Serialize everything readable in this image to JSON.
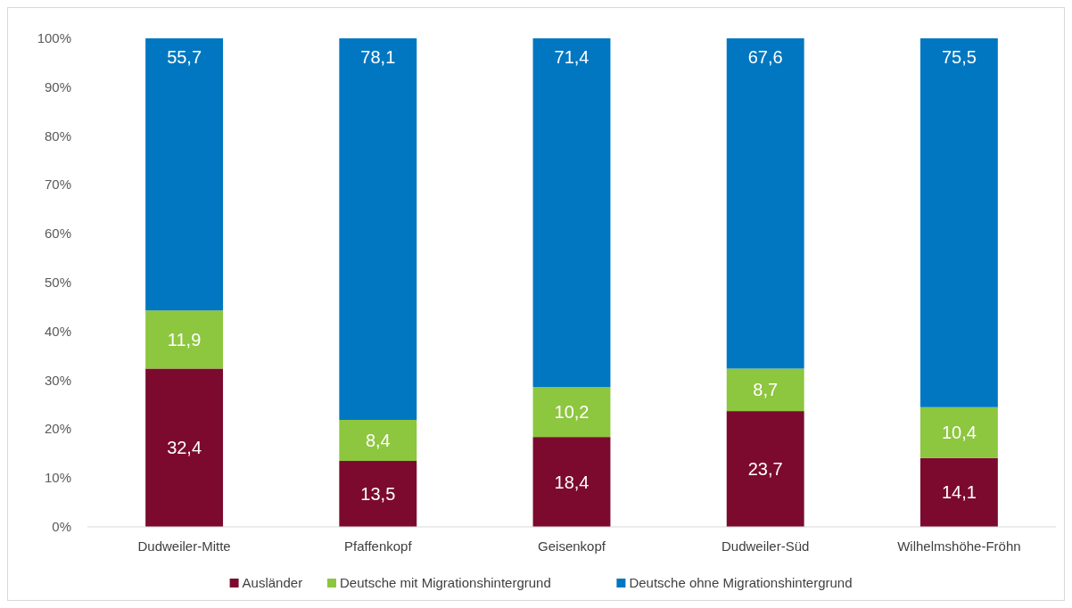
{
  "chart_data": {
    "type": "bar",
    "stacked": true,
    "categories": [
      "Dudweiler-Mitte",
      "Pfaffenkopf",
      "Geisenkopf",
      "Dudweiler-Süd",
      "Wilhelmshöhe-Fröhn"
    ],
    "series": [
      {
        "name": "Ausländer",
        "color": "#7b0a2e",
        "values": [
          32.4,
          13.5,
          18.4,
          23.7,
          14.1
        ],
        "value_labels": [
          "32,4",
          "13,5",
          "18,4",
          "23,7",
          "14,1"
        ]
      },
      {
        "name": "Deutsche mit Migrationshintergrund",
        "color": "#8dc63f",
        "values": [
          11.9,
          8.4,
          10.2,
          8.7,
          10.4
        ],
        "value_labels": [
          "11,9",
          "8,4",
          "10,2",
          "8,7",
          "10,4"
        ]
      },
      {
        "name": "Deutsche ohne Migrationshintergrund",
        "color": "#0077c0",
        "values": [
          55.7,
          78.1,
          71.4,
          67.6,
          75.5
        ],
        "value_labels": [
          "55,7",
          "78,1",
          "71,4",
          "67,6",
          "75,5"
        ]
      }
    ],
    "ylim": [
      0,
      100
    ],
    "yticks": [
      {
        "value": 0,
        "label": "0%"
      },
      {
        "value": 10,
        "label": "10%"
      },
      {
        "value": 20,
        "label": "20%"
      },
      {
        "value": 30,
        "label": "30%"
      },
      {
        "value": 40,
        "label": "40%"
      },
      {
        "value": 50,
        "label": "50%"
      },
      {
        "value": 60,
        "label": "60%"
      },
      {
        "value": 70,
        "label": "70%"
      },
      {
        "value": 80,
        "label": "80%"
      },
      {
        "value": 90,
        "label": "90%"
      },
      {
        "value": 100,
        "label": "100%"
      }
    ],
    "legend": "bottom"
  }
}
